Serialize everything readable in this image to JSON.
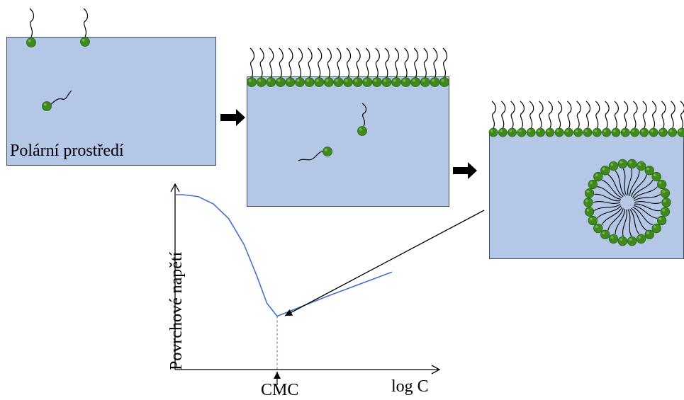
{
  "stage1": {
    "medium_label": "Polární prostředí"
  },
  "chart_data": {
    "type": "line",
    "title": "",
    "xlabel": "log C",
    "ylabel": "Povrchové napětí",
    "marker_label": "CMC",
    "x_ticks": [],
    "y_ticks": [],
    "series": [
      {
        "points": [
          [
            0,
            0.95
          ],
          [
            0.03,
            0.95
          ],
          [
            0.09,
            0.94
          ],
          [
            0.15,
            0.9
          ],
          [
            0.21,
            0.82
          ],
          [
            0.27,
            0.68
          ],
          [
            0.32,
            0.51
          ],
          [
            0.36,
            0.36
          ],
          [
            0.4,
            0.29
          ],
          [
            0.4,
            0.29
          ],
          [
            0.6,
            0.4
          ],
          [
            0.85,
            0.53
          ]
        ]
      }
    ],
    "cmc_x": 0.4,
    "grid": false
  },
  "colors": {
    "medium": "#b4c7e7",
    "head": "#3f8a1e",
    "curve": "#4472c4",
    "arrow": "#000000"
  }
}
